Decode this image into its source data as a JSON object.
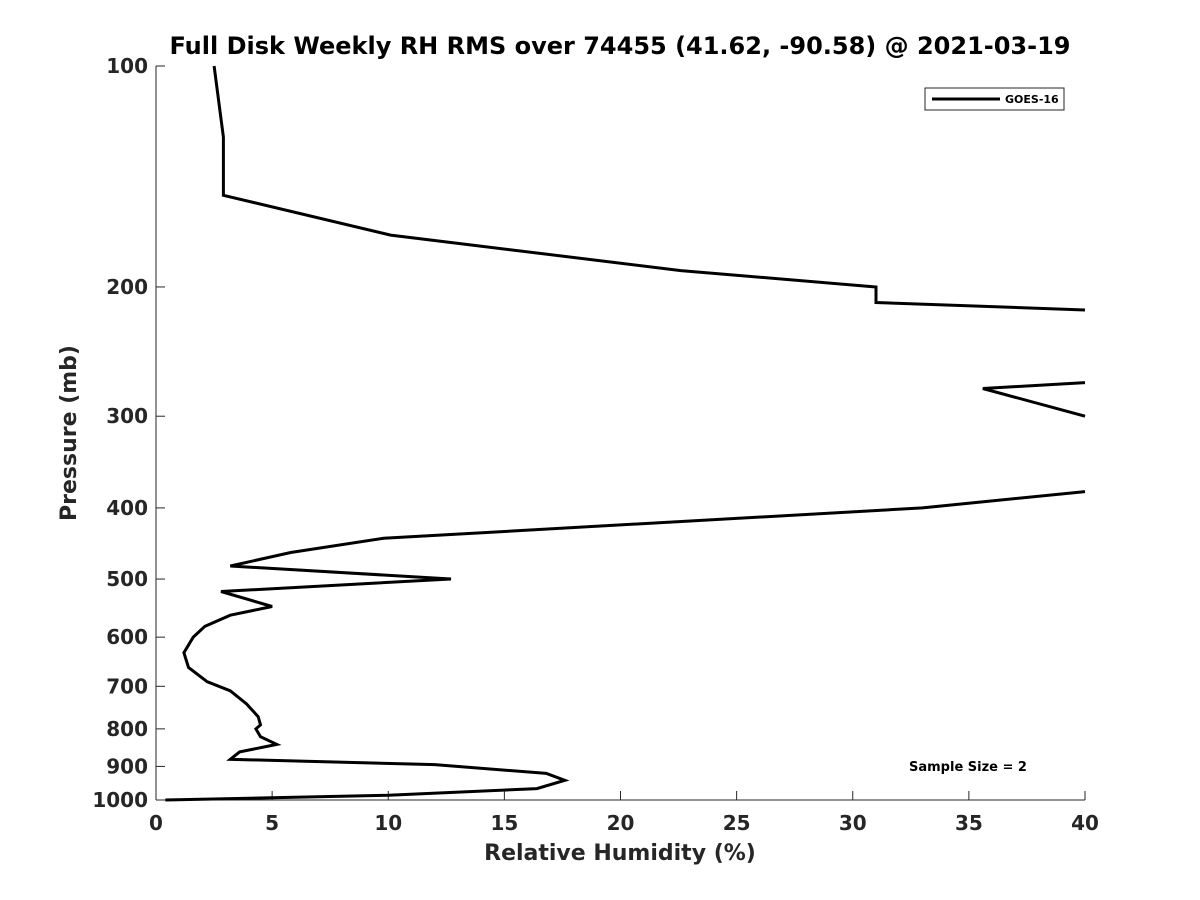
{
  "chart_data": {
    "type": "line",
    "title": "Full Disk Weekly RH RMS over 74455 (41.62, -90.58) @ 2021-03-19",
    "xlabel": "Relative Humidity (%)",
    "ylabel": "Pressure (mb)",
    "xlim": [
      0,
      40
    ],
    "ylim": [
      100,
      1000
    ],
    "yscale": "log",
    "y_reversed": true,
    "grid": false,
    "x_ticks": [
      0,
      5,
      10,
      15,
      20,
      25,
      30,
      35,
      40
    ],
    "y_ticks": [
      100,
      200,
      300,
      400,
      500,
      600,
      700,
      800,
      900,
      1000
    ],
    "legend": {
      "position": "top-right",
      "entries": [
        "GOES-16"
      ]
    },
    "annotations": [
      "Sample Size = 2"
    ],
    "series": [
      {
        "name": "GOES-16",
        "color": "#000000",
        "points": [
          [
            2.5,
            100
          ],
          [
            2.9,
            125
          ],
          [
            2.9,
            150
          ],
          [
            10.1,
            170
          ],
          [
            22.6,
            190
          ],
          [
            31.0,
            200
          ],
          [
            31.0,
            210
          ],
          [
            40.0,
            215
          ],
          [
            null,
            null
          ],
          [
            40.0,
            270
          ],
          [
            35.6,
            275
          ],
          [
            40.0,
            300
          ],
          [
            null,
            null
          ],
          [
            40.0,
            380
          ],
          [
            33.0,
            400
          ],
          [
            9.8,
            440
          ],
          [
            5.8,
            460
          ],
          [
            3.2,
            480
          ],
          [
            12.7,
            500
          ],
          [
            2.8,
            520
          ],
          [
            5.0,
            545
          ],
          [
            3.2,
            560
          ],
          [
            2.1,
            580
          ],
          [
            1.6,
            600
          ],
          [
            1.2,
            630
          ],
          [
            1.4,
            660
          ],
          [
            2.2,
            690
          ],
          [
            3.2,
            710
          ],
          [
            3.9,
            740
          ],
          [
            4.4,
            770
          ],
          [
            4.5,
            790
          ],
          [
            4.3,
            800
          ],
          [
            4.5,
            820
          ],
          [
            5.2,
            840
          ],
          [
            3.6,
            860
          ],
          [
            3.2,
            880
          ],
          [
            12.0,
            895
          ],
          [
            16.8,
            920
          ],
          [
            17.6,
            940
          ],
          [
            16.4,
            965
          ],
          [
            10.0,
            985
          ],
          [
            0.4,
            1000
          ]
        ]
      }
    ]
  }
}
